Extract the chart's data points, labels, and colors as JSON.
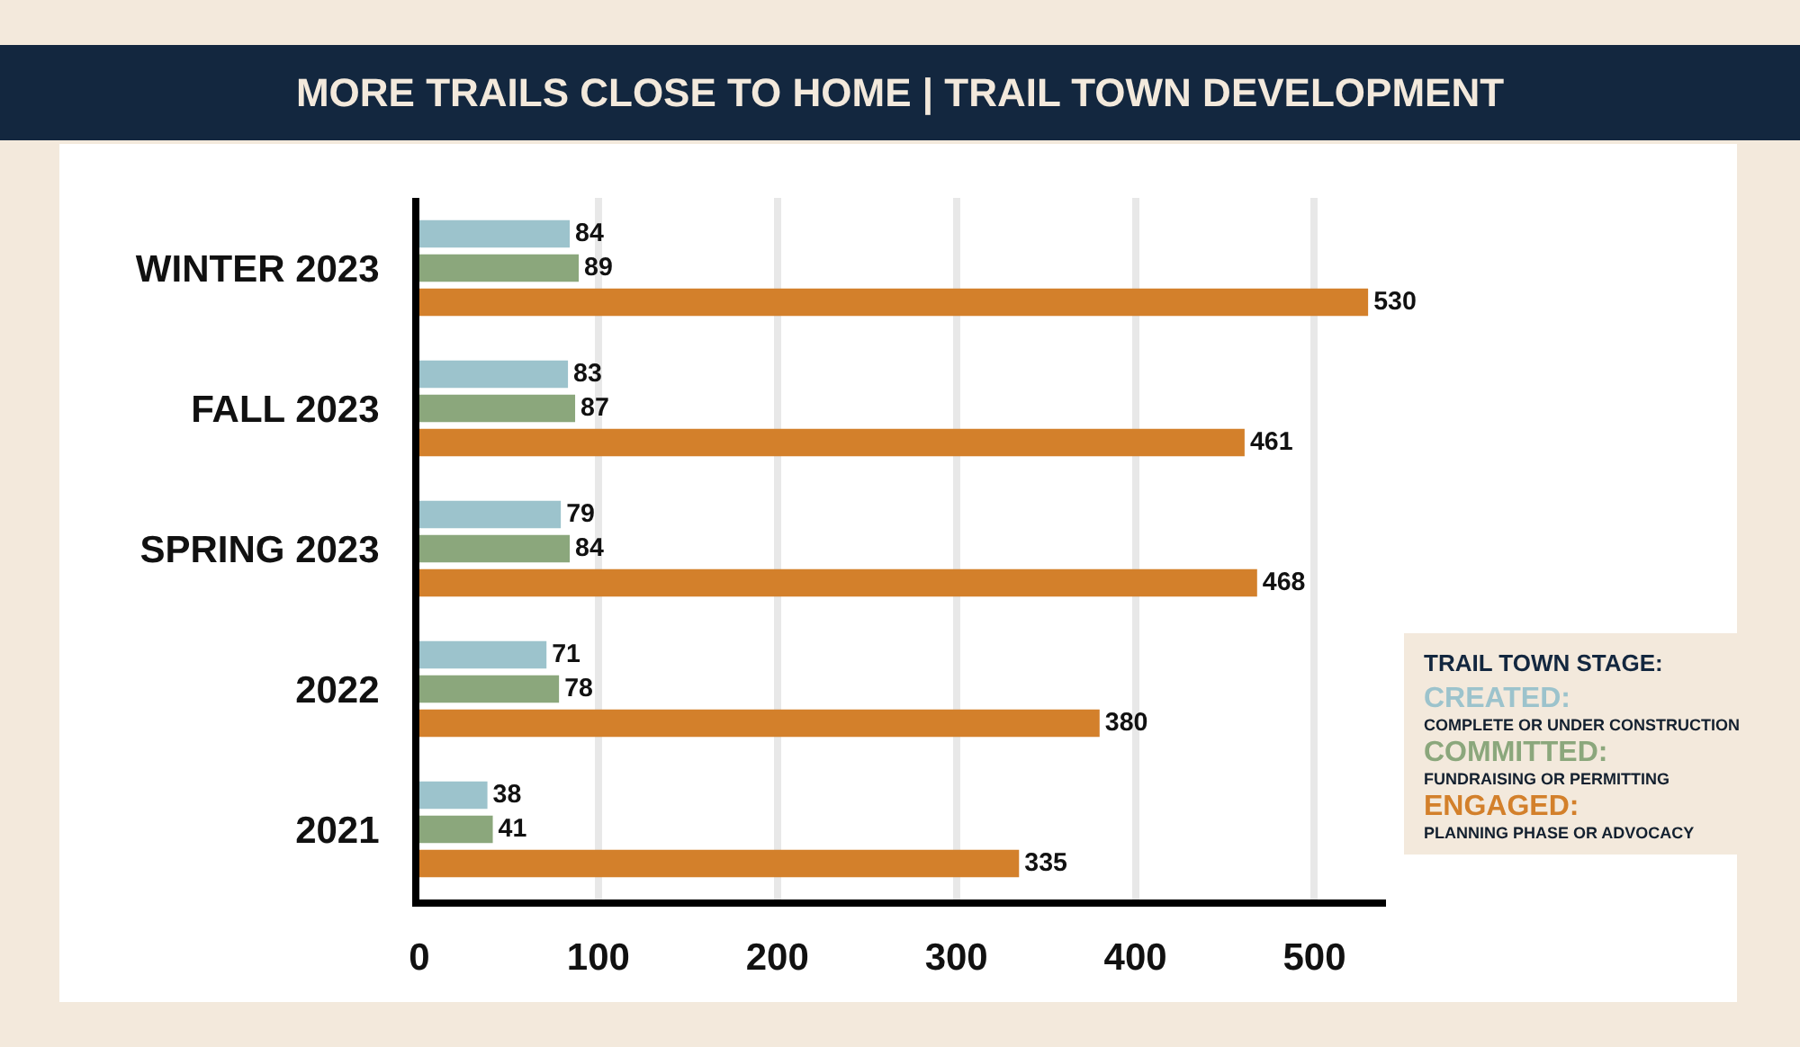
{
  "chart_data": {
    "type": "bar",
    "orientation": "horizontal",
    "title": "MORE TRAILS CLOSE TO HOME | TRAIL TOWN DEVELOPMENT",
    "categories": [
      "WINTER 2023",
      "FALL 2023",
      "SPRING 2023",
      "2022",
      "2021"
    ],
    "series": [
      {
        "name": "CREATED:\nCOMPLETE OR UNDER CONSTRUCTION",
        "color": "#9cc3cc",
        "values": [
          84,
          83,
          79,
          71,
          38
        ]
      },
      {
        "name": "COMMITTED:\nFUNDRAISING OR PERMITTING",
        "color": "#8ba77c",
        "values": [
          89,
          87,
          84,
          78,
          41
        ]
      },
      {
        "name": "ENGAGED:\nPLANNING PHASE OR ADVOCACY",
        "color": "#d3802b",
        "values": [
          530,
          461,
          468,
          380,
          335
        ]
      }
    ],
    "xlim": [
      0,
      540
    ],
    "xticks": [
      0,
      100,
      200,
      300,
      400,
      500
    ],
    "grid": "x",
    "legend": "bottom right",
    "legend_title": "TRAIL TOWN STAGE:",
    "data_labels": true
  }
}
